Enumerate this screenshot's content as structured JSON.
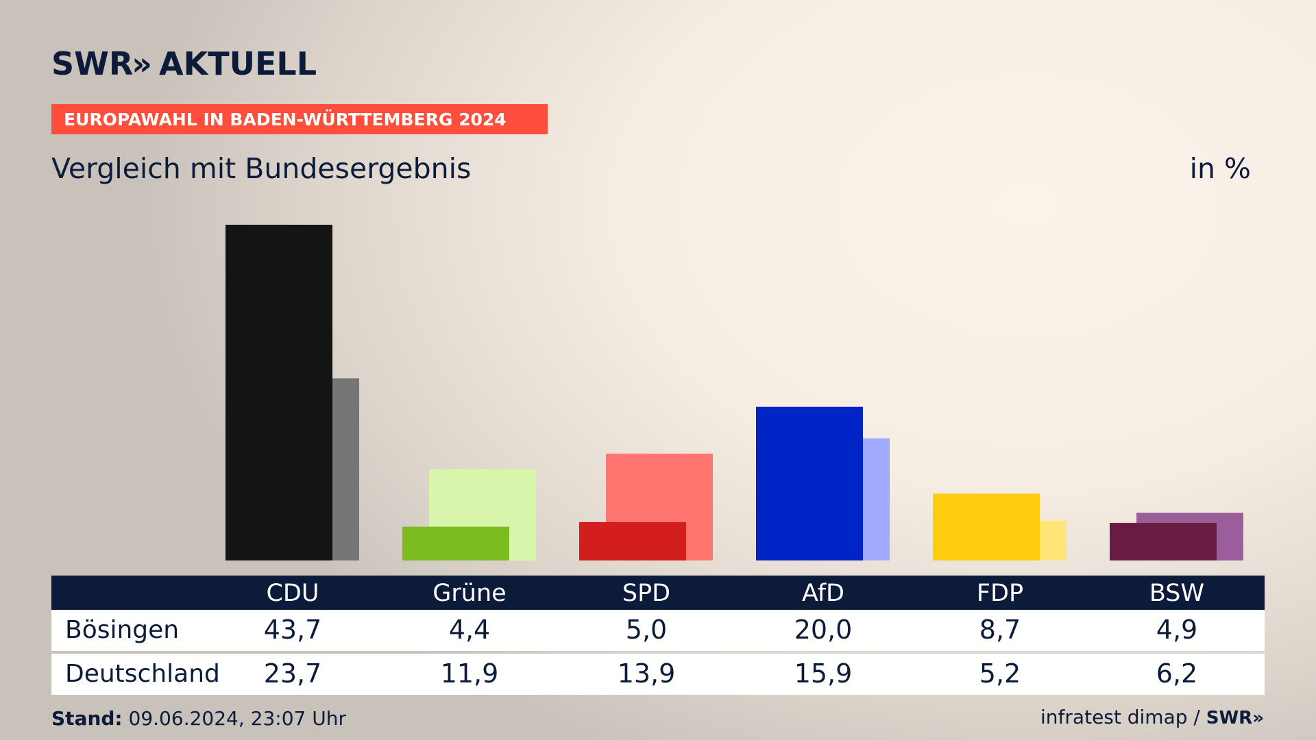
{
  "header": {
    "logo_text": "SWR",
    "logo_chevron": "»",
    "logo_suffix": "AKTUELL",
    "banner": "EUROPAWAHL IN BADEN-WÜRTTEMBERG 2024",
    "subtitle": "Vergleich mit Bundesergebnis",
    "unit": "in %"
  },
  "chart_data": {
    "type": "bar",
    "categories": [
      "CDU",
      "Grüne",
      "SPD",
      "AfD",
      "FDP",
      "BSW"
    ],
    "series": [
      {
        "name": "Bösingen",
        "values": [
          43.7,
          4.4,
          5.0,
          20.0,
          8.7,
          4.9
        ],
        "labels": [
          "43,7",
          "4,4",
          "5,0",
          "20,0",
          "8,7",
          "4,9"
        ]
      },
      {
        "name": "Deutschland",
        "values": [
          23.7,
          11.9,
          13.9,
          15.9,
          5.2,
          6.2
        ],
        "labels": [
          "23,7",
          "11,9",
          "13,9",
          "15,9",
          "5,2",
          "6,2"
        ]
      }
    ],
    "colors": {
      "primary": [
        "#141414",
        "#7bbd1f",
        "#d41e1e",
        "#0025c7",
        "#ffcd0f",
        "#6a1b41"
      ],
      "secondary": [
        "#767676",
        "#d7f5ab",
        "#ff7670",
        "#9faaff",
        "#ffe577",
        "#9a5e9a"
      ]
    },
    "ylim": [
      0,
      43.7
    ],
    "grid": false,
    "legend": "table-below"
  },
  "footer": {
    "stand_label": "Stand:",
    "stand_value": "09.06.2024, 23:07 Uhr",
    "source": "infratest dimap",
    "separator": "/",
    "source_logo": "SWR»"
  }
}
